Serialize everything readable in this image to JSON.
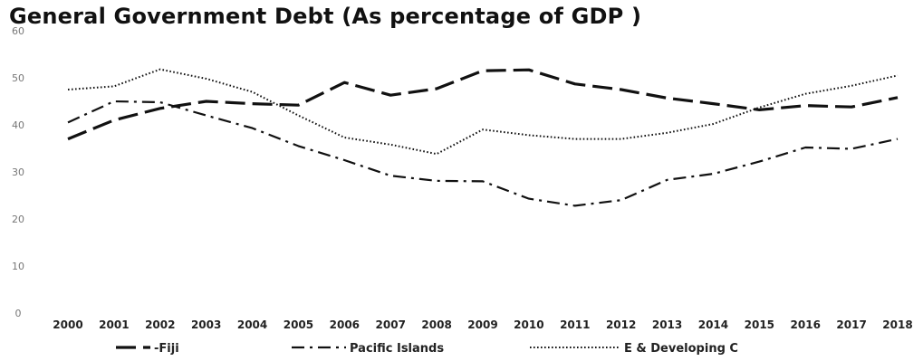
{
  "chart_data": {
    "type": "line",
    "title": "General Government Debt (As percentage of GDP )",
    "xlabel": "",
    "ylabel": "",
    "ylim": [
      0,
      60
    ],
    "y_ticks": [
      0,
      10,
      20,
      30,
      40,
      50,
      60
    ],
    "grid": false,
    "legend_position": "bottom",
    "categories": [
      "2000",
      "2001",
      "2002",
      "2003",
      "2004",
      "2005",
      "2006",
      "2007",
      "2008",
      "2009",
      "2010",
      "2011",
      "2012",
      "2013",
      "2014",
      "2015",
      "2016",
      "2017",
      "2018"
    ],
    "series": [
      {
        "name": "Fiji",
        "legend_label": "-Fiji",
        "style": "long-dash",
        "color": "#111111",
        "values": [
          37,
          41,
          43.5,
          45,
          44.5,
          44.2,
          49,
          46.3,
          47.7,
          51.5,
          51.7,
          48.7,
          47.5,
          45.7,
          44.5,
          43.2,
          44.1,
          43.8,
          45.8
        ]
      },
      {
        "name": "Pacific Islands",
        "legend_label": "Pacific Islands",
        "style": "dash-dot",
        "color": "#111111",
        "values": [
          40.5,
          45,
          44.8,
          42,
          39.3,
          35.5,
          32.5,
          29.2,
          28.1,
          28,
          24.3,
          22.8,
          24,
          28.3,
          29.6,
          32.2,
          35.2,
          34.9,
          37
        ]
      },
      {
        "name": "E & Developing C",
        "legend_label": "E & Developing C",
        "style": "dotted",
        "color": "#111111",
        "values": [
          47.5,
          48.2,
          51.8,
          49.8,
          47,
          42,
          37.3,
          35.8,
          33.8,
          39,
          37.8,
          37,
          37,
          38.3,
          40.2,
          43.7,
          46.6,
          48.3,
          50.5
        ]
      }
    ]
  }
}
